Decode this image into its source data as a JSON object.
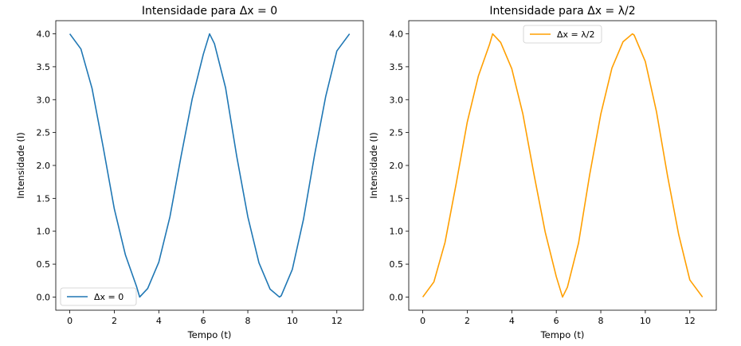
{
  "chart_data": [
    {
      "type": "line",
      "title": "Intensidade para Δx = 0",
      "xlabel": "Tempo (t)",
      "ylabel": "Intensidade (I)",
      "xlim": [
        -0.63,
        13.19
      ],
      "ylim": [
        -0.2,
        4.2
      ],
      "xticks": [
        0,
        2,
        4,
        6,
        8,
        10,
        12
      ],
      "xtick_labels": [
        "0",
        "2",
        "4",
        "6",
        "8",
        "10",
        "12"
      ],
      "yticks": [
        0.0,
        0.5,
        1.0,
        1.5,
        2.0,
        2.5,
        3.0,
        3.5,
        4.0
      ],
      "ytick_labels": [
        "0.0",
        "0.5",
        "1.0",
        "1.5",
        "2.0",
        "2.5",
        "3.0",
        "3.5",
        "4.0"
      ],
      "grid": false,
      "legend_position": "lower-left",
      "series": [
        {
          "name": "Δx = 0",
          "color": "#1f77b4",
          "x": [
            0.0,
            0.5,
            1.0,
            1.5,
            2.0,
            2.5,
            3.0,
            3.14,
            3.5,
            4.0,
            4.5,
            5.0,
            5.5,
            6.0,
            6.28,
            6.5,
            7.0,
            7.5,
            8.0,
            8.5,
            9.0,
            9.42,
            9.5,
            10.0,
            10.5,
            11.0,
            11.5,
            12.0,
            12.57
          ],
          "values": [
            4.0,
            3.77,
            3.17,
            2.28,
            1.34,
            0.64,
            0.16,
            0.0,
            0.13,
            0.53,
            1.22,
            2.14,
            3.01,
            3.69,
            4.0,
            3.85,
            3.18,
            2.14,
            1.22,
            0.52,
            0.12,
            0.0,
            0.02,
            0.42,
            1.18,
            2.16,
            3.05,
            3.74,
            4.0
          ]
        }
      ]
    },
    {
      "type": "line",
      "title": "Intensidade para Δx = λ/2",
      "xlabel": "Tempo (t)",
      "ylabel": "Intensidade (I)",
      "xlim": [
        -0.63,
        13.19
      ],
      "ylim": [
        -0.2,
        4.2
      ],
      "xticks": [
        0,
        2,
        4,
        6,
        8,
        10,
        12
      ],
      "xtick_labels": [
        "0",
        "2",
        "4",
        "6",
        "8",
        "10",
        "12"
      ],
      "yticks": [
        0.0,
        0.5,
        1.0,
        1.5,
        2.0,
        2.5,
        3.0,
        3.5,
        4.0
      ],
      "ytick_labels": [
        "0.0",
        "0.5",
        "1.0",
        "1.5",
        "2.0",
        "2.5",
        "3.0",
        "3.5",
        "4.0"
      ],
      "grid": false,
      "legend_position": "upper-center",
      "series": [
        {
          "name": "Δx = λ/2",
          "color": "#ff9f00",
          "x": [
            0.0,
            0.5,
            1.0,
            1.5,
            2.0,
            2.5,
            3.0,
            3.14,
            3.5,
            4.0,
            4.5,
            5.0,
            5.5,
            6.0,
            6.28,
            6.5,
            7.0,
            7.5,
            8.0,
            8.5,
            9.0,
            9.42,
            9.5,
            10.0,
            10.5,
            11.0,
            11.5,
            12.0,
            12.57
          ],
          "values": [
            0.0,
            0.23,
            0.83,
            1.72,
            2.66,
            3.36,
            3.84,
            4.0,
            3.87,
            3.47,
            2.78,
            1.86,
            0.99,
            0.31,
            0.0,
            0.15,
            0.82,
            1.86,
            2.78,
            3.48,
            3.88,
            4.0,
            3.98,
            3.58,
            2.82,
            1.84,
            0.95,
            0.26,
            0.0
          ]
        }
      ]
    }
  ]
}
